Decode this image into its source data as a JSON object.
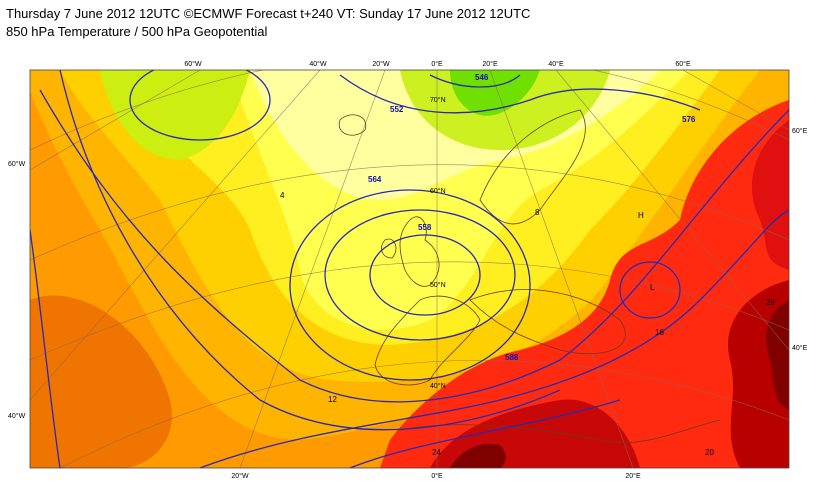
{
  "header": {
    "title": "Thursday 7 June 2012 12UTC ©ECMWF Forecast t+240 VT: Sunday 17 June 2012 12UTC",
    "subtitle": "850 hPa Temperature / 500 hPa Geopotential"
  },
  "map": {
    "lon_labels_top": [
      "60°W",
      "40°W",
      "20°W",
      "0°E",
      "20°E",
      "40°E",
      "60°E"
    ],
    "lon_labels_bottom": [
      "20°W",
      "0°E",
      "20°E"
    ],
    "lat_labels_left": [
      "60°W",
      "40°W"
    ],
    "lat_labels_right": [
      "60°E",
      "40°E"
    ],
    "lat_labels_inner": [
      "70°N",
      "60°N",
      "50°N",
      "40°N"
    ],
    "contour_labels": [
      "546",
      "552",
      "558",
      "564",
      "576",
      "588",
      "4",
      "8",
      "12",
      "16",
      "20",
      "24",
      "28",
      "H",
      "L"
    ]
  }
}
